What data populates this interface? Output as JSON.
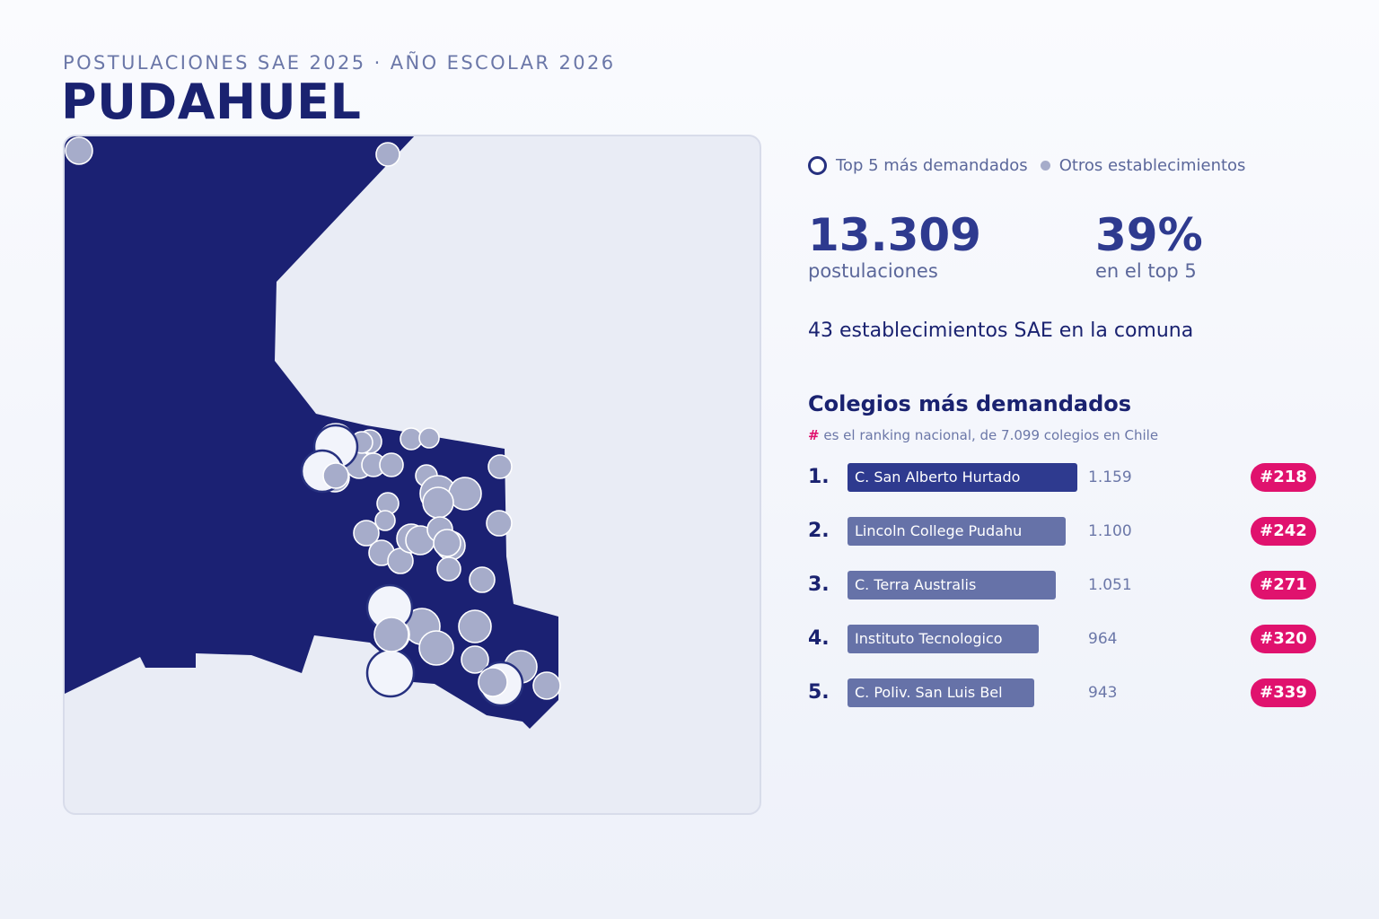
{
  "header": {
    "eyebrow": "POSTULACIONES SAE 2025 · AÑO ESCOLAR 2026",
    "title": "PUDAHUEL"
  },
  "legend": {
    "top5": "Top 5 más demandados",
    "others": "Otros establecimientos"
  },
  "stats": {
    "applications_value": "13.309",
    "applications_label": "postulaciones",
    "top5_share_value": "39%",
    "top5_share_label": "en el top 5"
  },
  "establishments_line": "43 establecimientos SAE en la comuna",
  "ranking": {
    "title": "Colegios más demandados",
    "note_hash": "#",
    "note_text": " es el ranking nacional, de 7.099 colegios en Chile",
    "bar_max_value": 1159,
    "items": [
      {
        "position": "1.",
        "name": "C. San Alberto Hurtado",
        "value_text": "1.159",
        "value": 1159,
        "national_rank": "#218"
      },
      {
        "position": "2.",
        "name": "Lincoln College Pudahu",
        "value_text": "1.100",
        "value": 1100,
        "national_rank": "#242"
      },
      {
        "position": "3.",
        "name": "C. Terra Australis",
        "value_text": "1.051",
        "value": 1051,
        "national_rank": "#271"
      },
      {
        "position": "4.",
        "name": "Instituto Tecnologico",
        "value_text": "964",
        "value": 964,
        "national_rank": "#320"
      },
      {
        "position": "5.",
        "name": "C. Poliv. San Luis Bel",
        "value_text": "943",
        "value": 943,
        "national_rank": "#339"
      }
    ]
  },
  "colors": {
    "commune_fill": "#1b2173",
    "background": "#e9ecf5",
    "other_marker": "#a6acca",
    "top5_marker_fill": "#f2f4fb",
    "top5_marker_stroke": "#26307f",
    "bar_first": "#2e3a8f",
    "bar_rest": "#6672a8",
    "badge": "#e0126e"
  }
}
